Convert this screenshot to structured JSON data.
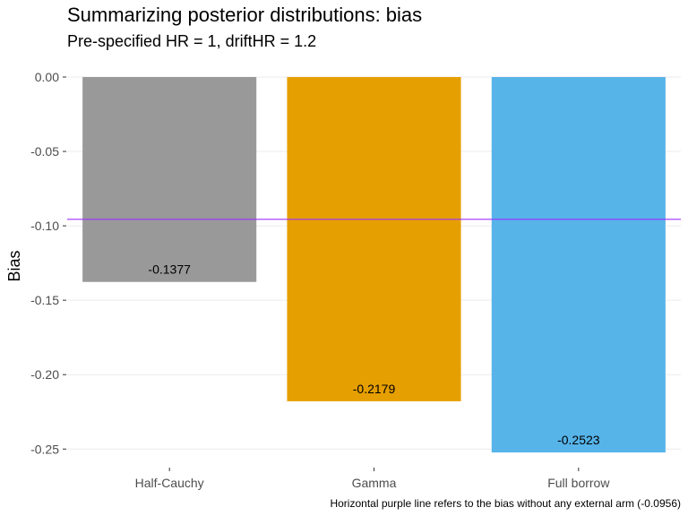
{
  "chart_data": {
    "type": "bar",
    "title": "Summarizing posterior distributions: bias",
    "subtitle": "Pre-specified HR = 1, driftHR = 1.2",
    "xlabel": "",
    "ylabel": "Bias",
    "categories": [
      "Half-Cauchy",
      "Gamma",
      "Full borrow"
    ],
    "values": [
      -0.1377,
      -0.2179,
      -0.2523
    ],
    "data_labels": [
      "-0.1377",
      "-0.2179",
      "-0.2523"
    ],
    "colors": [
      "#999999",
      "#E69F00",
      "#56B4E9"
    ],
    "ylim": [
      -0.26,
      0.0
    ],
    "yticks": [
      0.0,
      -0.05,
      -0.1,
      -0.15,
      -0.2,
      -0.25
    ],
    "ytick_labels": [
      "0.00",
      "-0.05",
      "-0.10",
      "-0.15",
      "-0.20",
      "-0.25"
    ],
    "reference_line": {
      "value": -0.0956,
      "color": "#9B30FF"
    },
    "grid": true,
    "legend": "none",
    "caption": "Horizontal purple line refers to the bias without any external arm (-0.0956)"
  }
}
